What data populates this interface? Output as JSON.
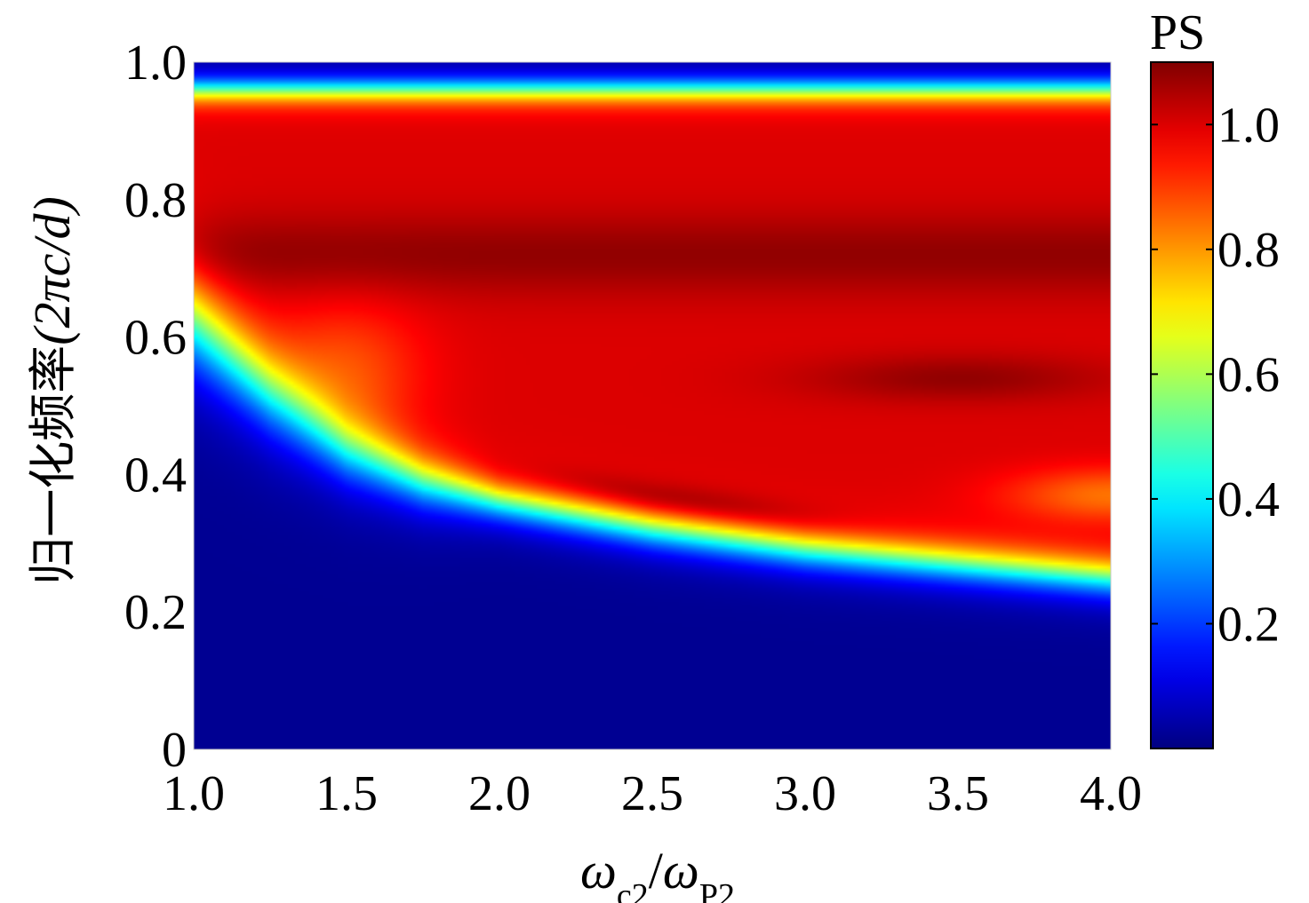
{
  "chart_data": {
    "type": "heatmap",
    "title": "",
    "xlabel": {
      "base1": "ω",
      "sub1": "c2",
      "slash": "/",
      "base2": "ω",
      "sub2": "P2"
    },
    "ylabel": {
      "prefix": "归一化频率",
      "suffix": "(2πc/d)"
    },
    "xlim": [
      1.0,
      4.0
    ],
    "ylim": [
      0,
      1.0
    ],
    "x_ticks": [
      1.0,
      1.5,
      2.0,
      2.5,
      3.0,
      3.5,
      4.0
    ],
    "x_tick_labels": [
      "1.0",
      "1.5",
      "2.0",
      "2.5",
      "3.0",
      "3.5",
      "4.0"
    ],
    "y_ticks": [
      0,
      0.2,
      0.4,
      0.6,
      0.8,
      1.0
    ],
    "y_tick_labels": [
      "0",
      "0.2",
      "0.4",
      "0.6",
      "0.8",
      "1.0"
    ],
    "colorbar": {
      "label": "PS",
      "range": [
        0,
        1.1
      ],
      "ticks": [
        0.2,
        0.4,
        0.6,
        0.8,
        1.0
      ],
      "tick_labels": [
        "0.2",
        "0.4",
        "0.6",
        "0.8",
        "1.0"
      ],
      "colormap": "jet"
    },
    "features": {
      "lower_band_edge": [
        {
          "x": 1.0,
          "y": 0.62
        },
        {
          "x": 1.25,
          "y": 0.52
        },
        {
          "x": 1.5,
          "y": 0.44
        },
        {
          "x": 1.75,
          "y": 0.39
        },
        {
          "x": 2.0,
          "y": 0.36
        },
        {
          "x": 2.5,
          "y": 0.32
        },
        {
          "x": 3.0,
          "y": 0.29
        },
        {
          "x": 3.5,
          "y": 0.27
        },
        {
          "x": 4.0,
          "y": 0.25
        }
      ],
      "upper_band_edge_y": 0.96,
      "high_value_bands": [
        {
          "y": 0.72,
          "value": 1.08
        },
        {
          "x": 3.5,
          "y": 0.54,
          "value": 1.08
        },
        {
          "x": 2.6,
          "y": 0.36,
          "value": 1.1
        }
      ],
      "background_value": 0.02,
      "plateau_value": 1.0
    }
  }
}
